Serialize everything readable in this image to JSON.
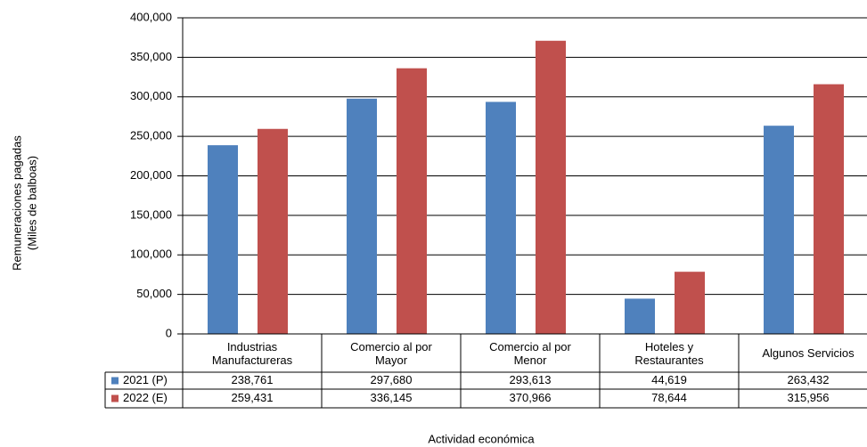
{
  "chart_data": {
    "type": "bar",
    "ylabel": [
      "Remuneraciones pagadas",
      "(Miles de balboas)"
    ],
    "xlabel": "Actividad económica",
    "categories": [
      "Industrias Manufactureras",
      "Comercio al por Mayor",
      "Comercio al por Menor",
      "Hoteles y Restaurantes",
      "Algunos Servicios"
    ],
    "series": [
      {
        "name": "2021 (P)",
        "color": "#4f81bd",
        "values": [
          238761,
          297680,
          293613,
          44619,
          263432
        ],
        "value_labels": [
          "238,761",
          "297,680",
          "293,613",
          "44,619",
          "263,432"
        ]
      },
      {
        "name": "2022 (E)",
        "color": "#c0504d",
        "values": [
          259431,
          336145,
          370966,
          78644,
          315956
        ],
        "value_labels": [
          "259,431",
          "336,145",
          "370,966",
          "78,644",
          "315,956"
        ]
      }
    ],
    "ylim": [
      0,
      400000
    ],
    "yticks": [
      0,
      {
        "value": 50000,
        "label": "50,000"
      },
      {
        "value": 100000,
        "label": "100,000"
      },
      {
        "value": 150000,
        "label": "150,000"
      },
      {
        "value": 200000,
        "label": "200,000"
      },
      {
        "value": 250000,
        "label": "250,000"
      },
      {
        "value": 300000,
        "label": "300,000"
      },
      {
        "value": 350000,
        "label": "350,000"
      },
      {
        "value": 400000,
        "label": "400,000"
      }
    ],
    "grid": true
  }
}
